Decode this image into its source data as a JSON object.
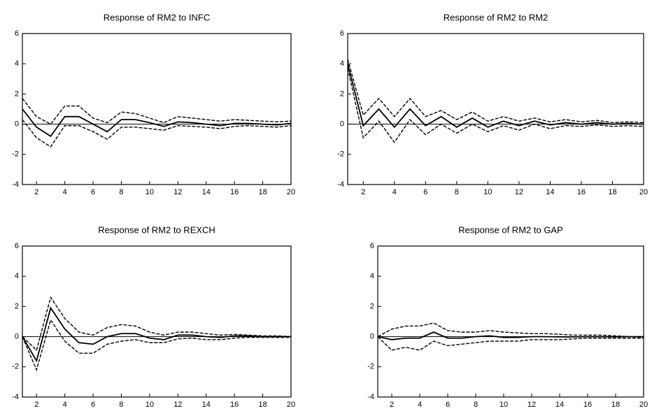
{
  "chart_data": [
    {
      "type": "line",
      "title": "Response of RM2 to INFC",
      "x": [
        1,
        2,
        3,
        4,
        5,
        6,
        7,
        8,
        9,
        10,
        11,
        12,
        13,
        14,
        15,
        16,
        17,
        18,
        19,
        20
      ],
      "series": [
        {
          "color": "#000000",
          "dash": false,
          "values": [
            1.0,
            -0.2,
            -0.8,
            0.5,
            0.5,
            0.0,
            -0.5,
            0.3,
            0.3,
            0.1,
            -0.15,
            0.15,
            0.1,
            0.0,
            -0.1,
            0.05,
            0.05,
            0.0,
            -0.05,
            0.05
          ]
        },
        {
          "color": "#000000",
          "dash": true,
          "values": [
            1.7,
            0.5,
            0.0,
            1.2,
            1.2,
            0.4,
            0.1,
            0.8,
            0.7,
            0.4,
            0.1,
            0.5,
            0.4,
            0.3,
            0.2,
            0.3,
            0.25,
            0.2,
            0.15,
            0.2
          ]
        },
        {
          "color": "#000000",
          "dash": true,
          "values": [
            0.3,
            -0.9,
            -1.5,
            -0.1,
            -0.1,
            -0.5,
            -1.0,
            -0.2,
            -0.2,
            -0.3,
            -0.4,
            -0.1,
            -0.15,
            -0.2,
            -0.3,
            -0.15,
            -0.1,
            -0.15,
            -0.2,
            -0.1
          ]
        }
      ],
      "xlim": [
        1,
        20
      ],
      "xticks": [
        2,
        4,
        6,
        8,
        10,
        12,
        14,
        16,
        18,
        20
      ],
      "ylim": [
        -4,
        6
      ],
      "yticks": [
        -4,
        -2,
        0,
        2,
        4,
        6
      ],
      "zero_line": true
    },
    {
      "type": "line",
      "title": "Response of RM2 to RM2",
      "x": [
        1,
        2,
        3,
        4,
        5,
        6,
        7,
        8,
        9,
        10,
        11,
        12,
        13,
        14,
        15,
        16,
        17,
        18,
        19,
        20
      ],
      "series": [
        {
          "color": "#000000",
          "dash": false,
          "values": [
            4.0,
            -0.1,
            1.0,
            -0.2,
            1.0,
            -0.1,
            0.5,
            -0.2,
            0.4,
            -0.2,
            0.2,
            -0.1,
            0.2,
            -0.05,
            0.1,
            0.0,
            0.1,
            0.0,
            0.05,
            0.0
          ]
        },
        {
          "color": "#000000",
          "dash": true,
          "values": [
            4.3,
            0.6,
            1.7,
            0.5,
            1.7,
            0.5,
            0.9,
            0.3,
            0.8,
            0.2,
            0.5,
            0.2,
            0.4,
            0.15,
            0.3,
            0.15,
            0.25,
            0.1,
            0.15,
            0.1
          ]
        },
        {
          "color": "#000000",
          "dash": true,
          "values": [
            3.7,
            -0.9,
            0.2,
            -1.2,
            0.3,
            -0.7,
            0.0,
            -0.6,
            0.0,
            -0.5,
            -0.1,
            -0.4,
            0.0,
            -0.3,
            -0.1,
            -0.15,
            -0.05,
            -0.15,
            -0.1,
            -0.15
          ]
        }
      ],
      "xlim": [
        1,
        20
      ],
      "xticks": [
        2,
        4,
        6,
        8,
        10,
        12,
        14,
        16,
        18,
        20
      ],
      "ylim": [
        -4,
        6
      ],
      "yticks": [
        -4,
        -2,
        0,
        2,
        4,
        6
      ],
      "zero_line": true
    },
    {
      "type": "line",
      "title": "Response of RM2 to REXCH",
      "x": [
        1,
        2,
        3,
        4,
        5,
        6,
        7,
        8,
        9,
        10,
        11,
        12,
        13,
        14,
        15,
        16,
        17,
        18,
        19,
        20
      ],
      "series": [
        {
          "color": "#000000",
          "dash": false,
          "values": [
            0.0,
            -1.6,
            1.9,
            0.5,
            -0.4,
            -0.5,
            0.0,
            0.2,
            0.2,
            -0.1,
            -0.2,
            0.1,
            0.1,
            0.0,
            -0.05,
            0.05,
            0.05,
            0.0,
            0.0,
            0.0
          ]
        },
        {
          "color": "#000000",
          "dash": true,
          "values": [
            0.0,
            -0.9,
            2.6,
            1.2,
            0.3,
            0.1,
            0.6,
            0.8,
            0.7,
            0.3,
            0.1,
            0.3,
            0.3,
            0.2,
            0.1,
            0.15,
            0.1,
            0.05,
            0.05,
            0.0
          ]
        },
        {
          "color": "#000000",
          "dash": true,
          "values": [
            0.0,
            -2.2,
            1.1,
            -0.3,
            -1.1,
            -1.1,
            -0.5,
            -0.3,
            -0.2,
            -0.4,
            -0.4,
            -0.15,
            -0.1,
            -0.2,
            -0.2,
            -0.1,
            -0.05,
            -0.05,
            -0.05,
            -0.05
          ]
        }
      ],
      "xlim": [
        1,
        20
      ],
      "xticks": [
        2,
        4,
        6,
        8,
        10,
        12,
        14,
        16,
        18,
        20
      ],
      "ylim": [
        -4,
        6
      ],
      "yticks": [
        -4,
        -2,
        0,
        2,
        4,
        6
      ],
      "zero_line": true
    },
    {
      "type": "line",
      "title": "Response of RM2 to GAP",
      "x": [
        1,
        2,
        3,
        4,
        5,
        6,
        7,
        8,
        9,
        10,
        11,
        12,
        13,
        14,
        15,
        16,
        17,
        18,
        19,
        20
      ],
      "series": [
        {
          "color": "#000000",
          "dash": false,
          "values": [
            0.0,
            -0.2,
            -0.1,
            -0.1,
            0.3,
            -0.1,
            -0.1,
            0.0,
            0.05,
            -0.05,
            -0.05,
            0.0,
            0.0,
            -0.02,
            -0.02,
            0.0,
            0.0,
            -0.01,
            0.0,
            0.0
          ]
        },
        {
          "color": "#000000",
          "dash": true,
          "values": [
            0.0,
            0.5,
            0.7,
            0.7,
            0.9,
            0.4,
            0.3,
            0.3,
            0.4,
            0.3,
            0.25,
            0.2,
            0.2,
            0.15,
            0.1,
            0.1,
            0.1,
            0.05,
            0.0,
            -0.05
          ]
        },
        {
          "color": "#000000",
          "dash": true,
          "values": [
            0.0,
            -0.9,
            -0.7,
            -0.9,
            -0.3,
            -0.6,
            -0.5,
            -0.4,
            -0.3,
            -0.3,
            -0.3,
            -0.2,
            -0.2,
            -0.2,
            -0.15,
            -0.1,
            -0.1,
            -0.1,
            -0.1,
            -0.1
          ]
        }
      ],
      "xlim": [
        1,
        20
      ],
      "xticks": [
        2,
        4,
        6,
        8,
        10,
        12,
        14,
        16,
        18,
        20
      ],
      "ylim": [
        -4,
        6
      ],
      "yticks": [
        -4,
        -2,
        0,
        2,
        4,
        6
      ],
      "zero_line": true
    }
  ]
}
